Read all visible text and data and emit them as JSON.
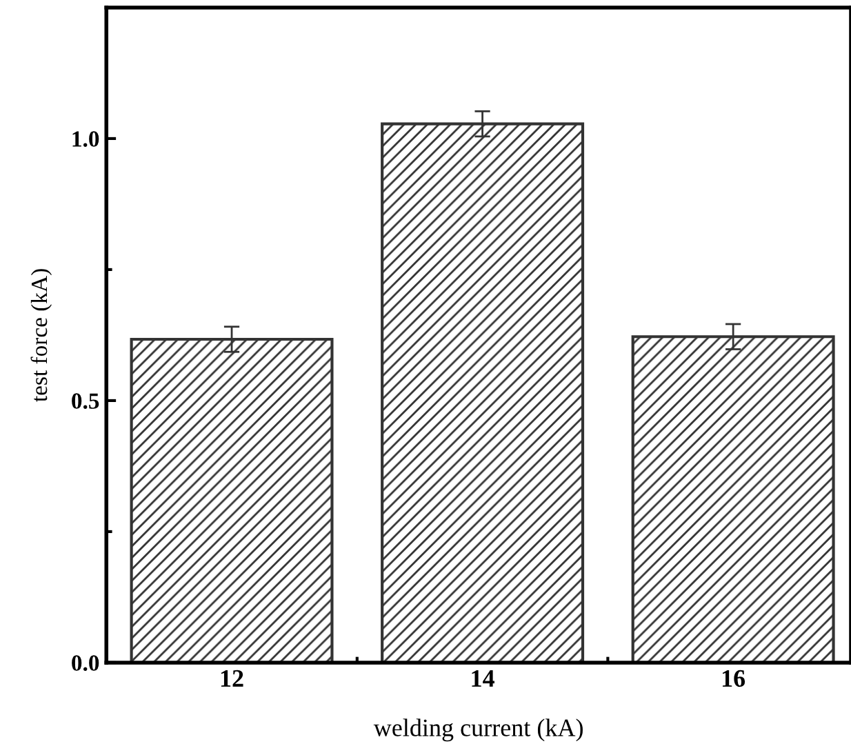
{
  "chart_data": {
    "type": "bar",
    "xlabel": "welding current (kA)",
    "ylabel": "test force (kA)",
    "categories": [
      "12",
      "14",
      "16"
    ],
    "values": [
      0.617,
      1.028,
      0.622
    ],
    "errors": [
      0.024,
      0.024,
      0.024
    ],
    "color": "#333333",
    "ylim": [
      0,
      1.25
    ],
    "yticks": [
      {
        "value": 0,
        "label": "0.0"
      },
      0.5,
      {
        "value": 1,
        "label": "1.0"
      }
    ],
    "grid": false,
    "legend": false
  }
}
